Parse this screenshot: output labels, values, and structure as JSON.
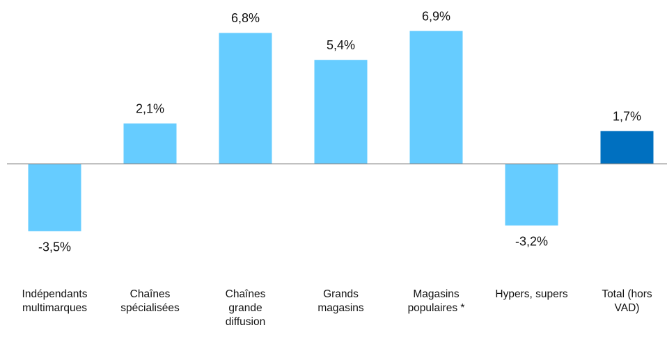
{
  "chart_data": {
    "type": "bar",
    "categories": [
      "Indépendants multimarques",
      "Chaînes spécialisées",
      "Chaînes grande diffusion",
      "Grands magasins",
      "Magasins populaires *",
      "Hypers, supers",
      "Total (hors VAD)"
    ],
    "values": [
      -3.5,
      2.1,
      6.8,
      5.4,
      6.9,
      -3.2,
      1.7
    ],
    "value_labels": [
      "-3,5%",
      "2,1%",
      "6,8%",
      "5,4%",
      "6,9%",
      "-3,2%",
      "1,7%"
    ],
    "colors": [
      "#66ccff",
      "#66ccff",
      "#66ccff",
      "#66ccff",
      "#66ccff",
      "#66ccff",
      "#0070c0"
    ],
    "ylim": [
      -4.5,
      7.5
    ]
  }
}
